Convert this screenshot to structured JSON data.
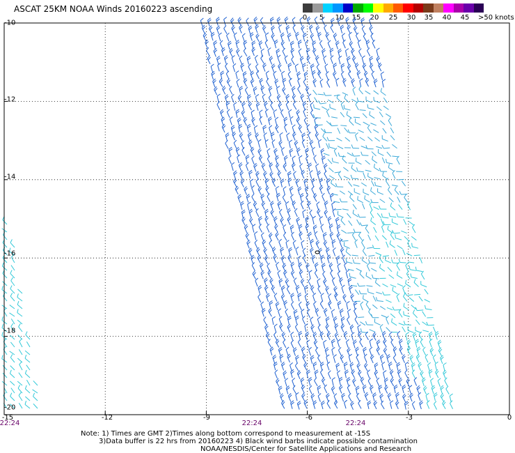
{
  "title": "ASCAT 25KM NOAA Winds 20160223 ascending",
  "legend": {
    "labels": [
      "0",
      "5",
      "10",
      "15",
      "20",
      "25",
      "30",
      "35",
      "40",
      "45"
    ],
    "unit": ">50 knots",
    "colors": [
      "#3c3c3c",
      "#9a9a9a",
      "#00d2ff",
      "#0096ff",
      "#0000c8",
      "#00aa00",
      "#00ff00",
      "#ffff00",
      "#ffaa00",
      "#ff5a00",
      "#ff0000",
      "#b40000",
      "#7a3a1a",
      "#c08060",
      "#ff00ff",
      "#aa00aa",
      "#6a00aa",
      "#2a0055"
    ]
  },
  "axes": {
    "y_labels": [
      "-10",
      "-12",
      "-14",
      "-16",
      "-18",
      "-20"
    ],
    "x_labels": [
      "-15",
      "-12",
      "-9",
      "-6",
      "-3",
      "0"
    ],
    "time_labels": [
      "22:24",
      "22:24",
      "22:24"
    ]
  },
  "map": {
    "lon_range": [
      -15,
      0
    ],
    "lat_range": [
      -20,
      -10
    ],
    "barb_colors": {
      "slow": "#3aa8d8",
      "mid": "#1c5fd0",
      "cyan": "#30c8d8"
    }
  },
  "footer": {
    "line1": "Note: 1) Times are GMT 2)Times along bottom correspond to measurement at -15S",
    "line2": "3)Data buffer is 22 hrs from 20160223 4) Black wind barbs indicate possible contamination",
    "line3": "NOAA/NESDIS/Center for Satellite Applications and Research"
  }
}
